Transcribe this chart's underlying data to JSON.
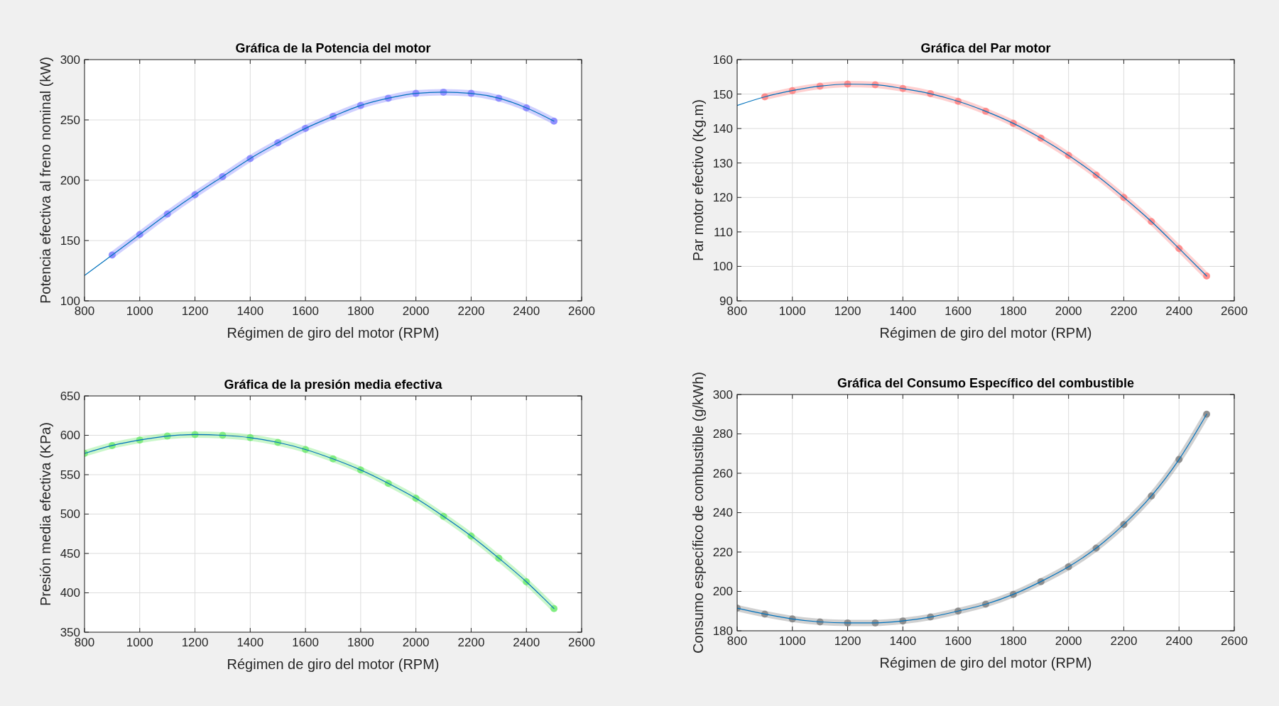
{
  "chart_data": [
    {
      "type": "line",
      "title": "Gráfica de la Potencia del motor",
      "xlabel": "Régimen de giro del motor (RPM)",
      "ylabel": "Potencia efectiva al freno nominal (kW)",
      "xlim": [
        800,
        2600
      ],
      "xticks": [
        800,
        1000,
        1200,
        1400,
        1600,
        1800,
        2000,
        2200,
        2400,
        2600
      ],
      "ylim": [
        100,
        300
      ],
      "yticks": [
        100,
        150,
        200,
        250,
        300
      ],
      "grid": true,
      "series": [
        {
          "color": "#6464ff",
          "marker": "circle",
          "x": [
            900,
            1000,
            1100,
            1200,
            1300,
            1400,
            1500,
            1600,
            1700,
            1800,
            1900,
            2000,
            2100,
            2200,
            2300,
            2400,
            2500
          ],
          "values": [
            138,
            155,
            172,
            188,
            203,
            218,
            231,
            243,
            253,
            262,
            268,
            272,
            273,
            272,
            268,
            260,
            249
          ]
        },
        {
          "color": "#0072bd",
          "marker": "none",
          "x": [
            800,
            900,
            1000,
            1100,
            1200,
            1300,
            1400,
            1500,
            1600,
            1700,
            1800,
            1900,
            2000,
            2100,
            2200,
            2300,
            2400,
            2500
          ],
          "values": [
            121,
            138,
            155,
            172,
            188,
            203,
            218,
            231,
            243,
            253,
            262,
            268,
            272,
            273,
            272,
            268,
            260,
            249
          ]
        }
      ]
    },
    {
      "type": "line",
      "title": "Gráfica del Par motor",
      "xlabel": "Régimen de giro del motor (RPM)",
      "ylabel": "Par motor efectivo (Kg.m)",
      "xlim": [
        800,
        2600
      ],
      "xticks": [
        800,
        1000,
        1200,
        1400,
        1600,
        1800,
        2000,
        2200,
        2400,
        2600
      ],
      "ylim": [
        90,
        160
      ],
      "yticks": [
        90,
        100,
        110,
        120,
        130,
        140,
        150,
        160
      ],
      "grid": true,
      "series": [
        {
          "color": "#ff6464",
          "marker": "circle",
          "x": [
            900,
            1000,
            1100,
            1200,
            1300,
            1400,
            1500,
            1600,
            1700,
            1800,
            1900,
            2000,
            2100,
            2200,
            2300,
            2400,
            2500
          ],
          "values": [
            149.2,
            151,
            152.3,
            152.9,
            152.7,
            151.6,
            150.1,
            147.9,
            145,
            141.5,
            137.2,
            132.2,
            126.5,
            120,
            113,
            105.2,
            97.2
          ]
        },
        {
          "color": "#0072bd",
          "marker": "none",
          "x": [
            800,
            900,
            1000,
            1100,
            1200,
            1300,
            1400,
            1500,
            1600,
            1700,
            1800,
            1900,
            2000,
            2100,
            2200,
            2300,
            2400,
            2500
          ],
          "values": [
            146.7,
            149.2,
            151,
            152.3,
            152.9,
            152.7,
            151.6,
            150.1,
            147.9,
            145,
            141.5,
            137.2,
            132.2,
            126.5,
            120,
            113,
            105.2,
            97.2
          ]
        }
      ]
    },
    {
      "type": "line",
      "title": "Gráfica de la presión media efectiva",
      "xlabel": "Régimen de giro del motor (RPM)",
      "ylabel": "Presión media efectiva (KPa)",
      "xlim": [
        800,
        2600
      ],
      "xticks": [
        800,
        1000,
        1200,
        1400,
        1600,
        1800,
        2000,
        2200,
        2400,
        2600
      ],
      "ylim": [
        350,
        650
      ],
      "yticks": [
        350,
        400,
        450,
        500,
        550,
        600,
        650
      ],
      "grid": true,
      "series": [
        {
          "color": "#50e650",
          "marker": "circle",
          "x": [
            800,
            900,
            1000,
            1100,
            1200,
            1300,
            1400,
            1500,
            1600,
            1700,
            1800,
            1900,
            2000,
            2100,
            2200,
            2300,
            2400,
            2500
          ],
          "values": [
            577,
            587,
            594,
            599,
            601,
            600,
            597,
            591,
            582,
            570,
            556,
            539,
            520,
            497,
            472,
            444,
            414,
            380
          ]
        },
        {
          "color": "#0072bd",
          "marker": "none",
          "x": [
            800,
            900,
            1000,
            1100,
            1200,
            1300,
            1400,
            1500,
            1600,
            1700,
            1800,
            1900,
            2000,
            2100,
            2200,
            2300,
            2400,
            2500
          ],
          "values": [
            577,
            587,
            594,
            599,
            601,
            600,
            597,
            591,
            582,
            570,
            556,
            539,
            520,
            497,
            472,
            444,
            414,
            380
          ]
        }
      ]
    },
    {
      "type": "line",
      "title": "Gráfica del Consumo Específico del combustible",
      "xlabel": "Régimen de giro del motor (RPM)",
      "ylabel": "Consumo específico de combustible (g/kWh)",
      "xlim": [
        800,
        2600
      ],
      "xticks": [
        800,
        1000,
        1200,
        1400,
        1600,
        1800,
        2000,
        2200,
        2400,
        2600
      ],
      "ylim": [
        180,
        300
      ],
      "yticks": [
        180,
        200,
        220,
        240,
        260,
        280,
        300
      ],
      "grid": true,
      "series": [
        {
          "color": "#646464",
          "marker": "circle",
          "x": [
            800,
            900,
            1000,
            1100,
            1200,
            1300,
            1400,
            1500,
            1600,
            1700,
            1800,
            1900,
            2000,
            2100,
            2200,
            2300,
            2400,
            2500
          ],
          "values": [
            191.5,
            188.5,
            186,
            184.5,
            184,
            184,
            185,
            187,
            190,
            193.5,
            198.5,
            205,
            212.5,
            222,
            234,
            248.5,
            267,
            290
          ]
        },
        {
          "color": "#0072bd",
          "marker": "none",
          "x": [
            800,
            900,
            1000,
            1100,
            1200,
            1300,
            1400,
            1500,
            1600,
            1700,
            1800,
            1900,
            2000,
            2100,
            2200,
            2300,
            2400,
            2500
          ],
          "values": [
            191.5,
            188.5,
            186,
            184.5,
            184,
            184,
            185,
            187,
            190,
            193.5,
            198.5,
            205,
            212.5,
            222,
            234,
            248.5,
            267,
            290
          ]
        }
      ]
    }
  ]
}
